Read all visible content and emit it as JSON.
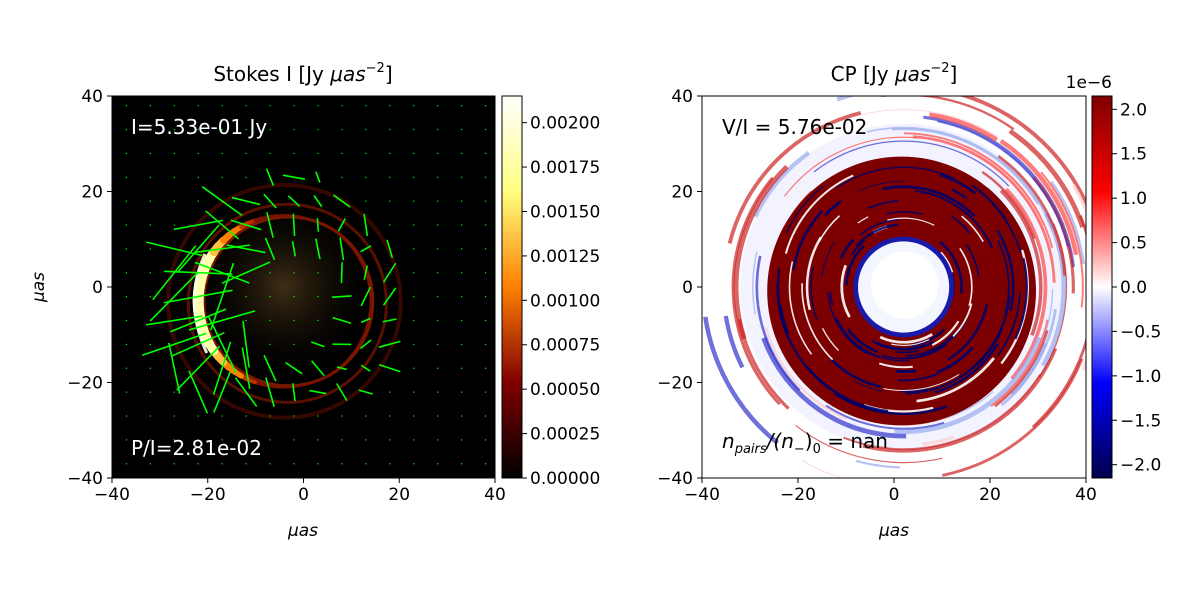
{
  "chart_data": [
    {
      "type": "heatmap",
      "title": "Stokes I [Jy μas⁻²]",
      "title_main": "Stokes I [Jy ",
      "title_unit": "μas",
      "title_exp": "−2",
      "title_close": "]",
      "xlabel": "μas",
      "ylabel": "μas",
      "xlim": [
        -40,
        40
      ],
      "ylim": [
        -40,
        40
      ],
      "xticks": [
        "−40",
        "−20",
        "0",
        "20",
        "40"
      ],
      "yticks": [
        "40",
        "20",
        "0",
        "−20",
        "−40"
      ],
      "colormap": "afmhot",
      "colorbar_range": [
        0,
        0.00215
      ],
      "colorbar_ticks": [
        "0.00000",
        "0.00025",
        "0.00050",
        "0.00075",
        "0.00100",
        "0.00125",
        "0.00150",
        "0.00175",
        "0.00200"
      ],
      "annotations": [
        "I=5.33e-01 Jy",
        "P/I=2.81e-02"
      ],
      "polarization_ticks_color": "#00ff00",
      "ring": {
        "center": [
          -4,
          -3
        ],
        "radius": 18,
        "bright_side": "left"
      }
    },
    {
      "type": "heatmap",
      "title": "CP [Jy μas⁻²]",
      "title_main": "CP [Jy ",
      "title_unit": "μas",
      "title_exp": "−2",
      "title_close": "]",
      "xlabel": "μas",
      "ylabel": "",
      "xlim": [
        -40,
        40
      ],
      "ylim": [
        -40,
        40
      ],
      "xticks": [
        "−40",
        "−20",
        "0",
        "20",
        "40"
      ],
      "yticks": [
        "40",
        "20",
        "0",
        "−20",
        "−40"
      ],
      "colormap": "seismic",
      "colorbar_range": [
        -2.15e-06,
        2.15e-06
      ],
      "colorbar_offset": "1e−6",
      "colorbar_ticks": [
        "2.0",
        "1.5",
        "1.0",
        "0.5",
        "0.0",
        "−0.5",
        "−1.0",
        "−1.5",
        "−2.0"
      ],
      "annotations": [
        "V/I = 5.76e-02"
      ],
      "annotation_pairs": {
        "n": "n",
        "sub": "pairs",
        "mid": "/(",
        "n2": "n",
        "sub2": "−",
        "close": ")",
        "sub3": "0",
        "eq": " = nan"
      }
    }
  ]
}
